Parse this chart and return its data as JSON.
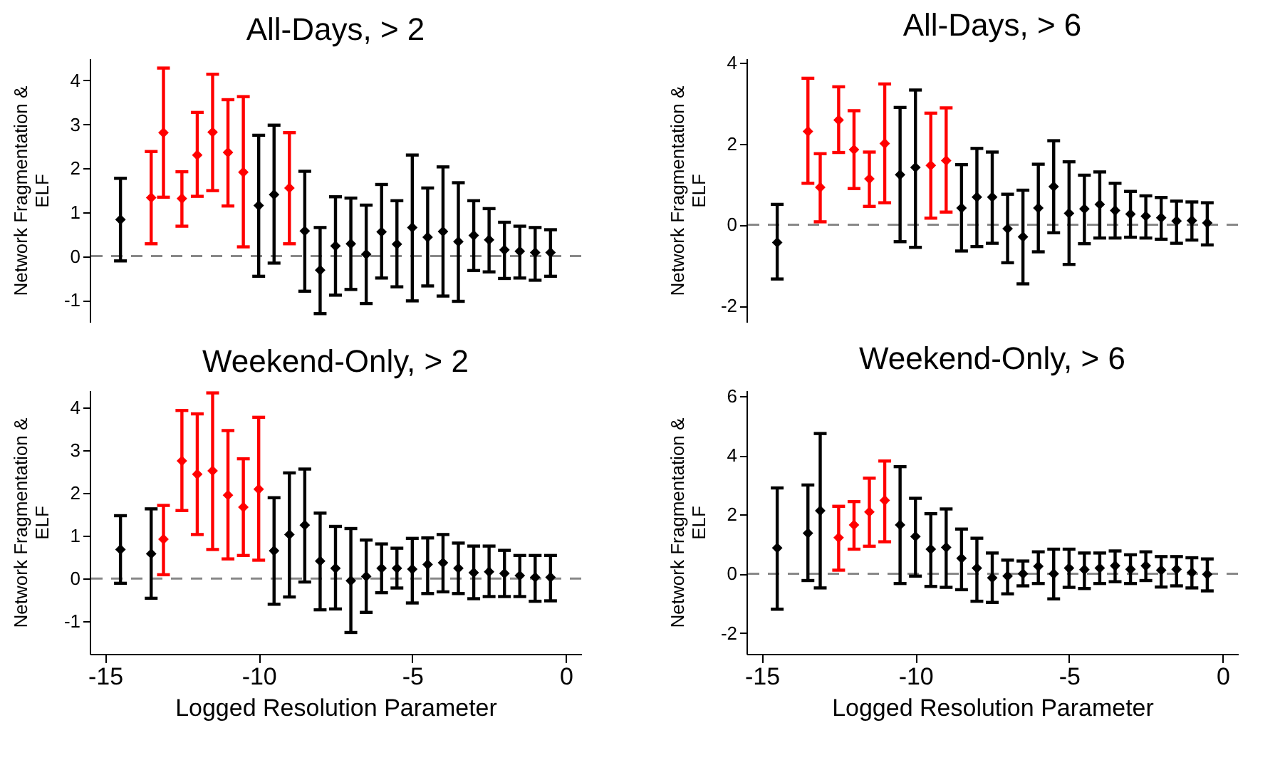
{
  "chart_data": [
    {
      "type": "scatter",
      "title": "All-Days, > 2",
      "ylabel": "Network Fragmentation &\nELF",
      "x": [
        -14.5,
        -13.5,
        -13.1,
        -12.5,
        -12,
        -11.5,
        -11,
        -10.5,
        -10,
        -9.5,
        -9,
        -8.5,
        -8,
        -7.5,
        -7,
        -6.5,
        -6,
        -5.5,
        -5,
        -4.5,
        -4,
        -3.5,
        -3,
        -2.5,
        -2,
        -1.5,
        -1,
        -0.5
      ],
      "values": [
        0.83,
        1.33,
        2.81,
        1.31,
        2.3,
        2.82,
        2.36,
        1.91,
        1.15,
        1.4,
        1.55,
        0.57,
        -0.32,
        0.23,
        0.28,
        0.04,
        0.55,
        0.27,
        0.65,
        0.43,
        0.56,
        0.33,
        0.47,
        0.37,
        0.14,
        0.11,
        0.08,
        0.08
      ],
      "errors": [
        [
          -0.11,
          1.77
        ],
        [
          0.28,
          2.38
        ],
        [
          1.34,
          4.28
        ],
        [
          0.68,
          1.92
        ],
        [
          1.36,
          3.27
        ],
        [
          1.49,
          4.14
        ],
        [
          1.14,
          3.56
        ],
        [
          0.21,
          3.63
        ],
        [
          -0.46,
          2.75
        ],
        [
          -0.16,
          2.98
        ],
        [
          0.28,
          2.81
        ],
        [
          -0.8,
          1.93
        ],
        [
          -1.31,
          0.65
        ],
        [
          -0.89,
          1.35
        ],
        [
          -0.76,
          1.32
        ],
        [
          -1.08,
          1.16
        ],
        [
          -0.5,
          1.63
        ],
        [
          -0.7,
          1.26
        ],
        [
          -1.02,
          2.3
        ],
        [
          -0.68,
          1.55
        ],
        [
          -0.91,
          2.03
        ],
        [
          -1.03,
          1.67
        ],
        [
          -0.33,
          1.26
        ],
        [
          -0.36,
          1.08
        ],
        [
          -0.51,
          0.77
        ],
        [
          -0.5,
          0.68
        ],
        [
          -0.55,
          0.65
        ],
        [
          -0.46,
          0.6
        ]
      ],
      "colors": [
        "#000000",
        "#ff0000",
        "#ff0000",
        "#ff0000",
        "#ff0000",
        "#ff0000",
        "#ff0000",
        "#ff0000",
        "#000000",
        "#000000",
        "#ff0000",
        "#000000",
        "#000000",
        "#000000",
        "#000000",
        "#000000",
        "#000000",
        "#000000",
        "#000000",
        "#000000",
        "#000000",
        "#000000",
        "#000000",
        "#000000",
        "#000000",
        "#000000",
        "#000000",
        "#000000"
      ],
      "xlim": [
        -15.5,
        0.5
      ],
      "ylim": [
        -1.5,
        4.5
      ],
      "yticks": [
        -1,
        0,
        1,
        2,
        3,
        4
      ],
      "tick_labels": "y",
      "marker": "diamond",
      "ref_lines": [
        {
          "axis": "y",
          "value": 0,
          "color": "#888888",
          "line_style": "dashed"
        }
      ]
    },
    {
      "type": "scatter",
      "title": "All-Days, > 6",
      "ylabel": "Network Fragmentation &\nELF",
      "x": [
        -14.5,
        -13.5,
        -13.1,
        -12.5,
        -12,
        -11.5,
        -11,
        -10.5,
        -10,
        -9.5,
        -9,
        -8.5,
        -8,
        -7.5,
        -7,
        -6.5,
        -6,
        -5.5,
        -5,
        -4.5,
        -4,
        -3.5,
        -3,
        -2.5,
        -2,
        -1.5,
        -1,
        -0.5
      ],
      "values": [
        -0.44,
        2.3,
        0.92,
        2.58,
        1.85,
        1.13,
        2.0,
        1.23,
        1.41,
        1.46,
        1.58,
        0.41,
        0.68,
        0.68,
        -0.1,
        -0.3,
        0.41,
        0.94,
        0.28,
        0.39,
        0.5,
        0.35,
        0.26,
        0.21,
        0.17,
        0.09,
        0.1,
        0.04
      ],
      "errors": [
        [
          -1.34,
          0.5
        ],
        [
          1.02,
          3.61
        ],
        [
          0.07,
          1.75
        ],
        [
          1.78,
          3.4
        ],
        [
          0.89,
          2.81
        ],
        [
          0.45,
          1.79
        ],
        [
          0.54,
          3.47
        ],
        [
          -0.42,
          2.89
        ],
        [
          -0.56,
          3.32
        ],
        [
          0.16,
          2.75
        ],
        [
          0.31,
          2.88
        ],
        [
          -0.65,
          1.48
        ],
        [
          -0.54,
          1.88
        ],
        [
          -0.46,
          1.79
        ],
        [
          -0.94,
          0.75
        ],
        [
          -1.46,
          0.85
        ],
        [
          -0.67,
          1.49
        ],
        [
          -0.2,
          2.07
        ],
        [
          -0.98,
          1.55
        ],
        [
          -0.47,
          1.22
        ],
        [
          -0.33,
          1.3
        ],
        [
          -0.33,
          1.02
        ],
        [
          -0.31,
          0.82
        ],
        [
          -0.33,
          0.71
        ],
        [
          -0.36,
          0.67
        ],
        [
          -0.46,
          0.58
        ],
        [
          -0.38,
          0.56
        ],
        [
          -0.5,
          0.54
        ]
      ],
      "colors": [
        "#000000",
        "#ff0000",
        "#ff0000",
        "#ff0000",
        "#ff0000",
        "#ff0000",
        "#ff0000",
        "#000000",
        "#000000",
        "#ff0000",
        "#ff0000",
        "#000000",
        "#000000",
        "#000000",
        "#000000",
        "#000000",
        "#000000",
        "#000000",
        "#000000",
        "#000000",
        "#000000",
        "#000000",
        "#000000",
        "#000000",
        "#000000",
        "#000000",
        "#000000",
        "#000000"
      ],
      "xlim": [
        -15.5,
        0.5
      ],
      "ylim": [
        -2.4,
        4.1
      ],
      "yticks": [
        -2,
        0,
        2,
        4
      ],
      "tick_labels": "y",
      "marker": "diamond",
      "ref_lines": [
        {
          "axis": "y",
          "value": 0,
          "color": "#888888",
          "line_style": "dashed"
        }
      ]
    },
    {
      "type": "scatter",
      "title": "Weekend-Only, > 2",
      "xlabel": "Logged Resolution Parameter",
      "ylabel": "Network Fragmentation &\nELF",
      "x": [
        -14.5,
        -13.5,
        -13.1,
        -12.5,
        -12,
        -11.5,
        -11,
        -10.5,
        -10,
        -9.5,
        -9,
        -8.5,
        -8,
        -7.5,
        -7,
        -6.5,
        -6,
        -5.5,
        -5,
        -4.5,
        -4,
        -3.5,
        -3,
        -2.5,
        -2,
        -1.5,
        -1,
        -0.5
      ],
      "values": [
        0.68,
        0.58,
        0.92,
        2.75,
        2.44,
        2.52,
        1.95,
        1.67,
        2.09,
        0.65,
        1.03,
        1.25,
        0.41,
        0.24,
        -0.05,
        0.05,
        0.24,
        0.24,
        0.22,
        0.33,
        0.37,
        0.24,
        0.14,
        0.16,
        0.12,
        0.07,
        0.03,
        0.03
      ],
      "errors": [
        [
          -0.11,
          1.47
        ],
        [
          -0.46,
          1.63
        ],
        [
          0.09,
          1.71
        ],
        [
          1.59,
          3.93
        ],
        [
          1.03,
          3.85
        ],
        [
          0.68,
          4.34
        ],
        [
          0.46,
          3.46
        ],
        [
          0.54,
          2.8
        ],
        [
          0.43,
          3.77
        ],
        [
          -0.6,
          1.89
        ],
        [
          -0.43,
          2.47
        ],
        [
          -0.08,
          2.56
        ],
        [
          -0.73,
          1.53
        ],
        [
          -0.71,
          1.22
        ],
        [
          -1.26,
          1.17
        ],
        [
          -0.79,
          0.9
        ],
        [
          -0.33,
          0.81
        ],
        [
          -0.22,
          0.71
        ],
        [
          -0.57,
          0.94
        ],
        [
          -0.35,
          0.95
        ],
        [
          -0.31,
          1.03
        ],
        [
          -0.35,
          0.83
        ],
        [
          -0.47,
          0.76
        ],
        [
          -0.42,
          0.76
        ],
        [
          -0.42,
          0.66
        ],
        [
          -0.42,
          0.54
        ],
        [
          -0.53,
          0.54
        ],
        [
          -0.52,
          0.54
        ]
      ],
      "colors": [
        "#000000",
        "#000000",
        "#ff0000",
        "#ff0000",
        "#ff0000",
        "#ff0000",
        "#ff0000",
        "#ff0000",
        "#ff0000",
        "#000000",
        "#000000",
        "#000000",
        "#000000",
        "#000000",
        "#000000",
        "#000000",
        "#000000",
        "#000000",
        "#000000",
        "#000000",
        "#000000",
        "#000000",
        "#000000",
        "#000000",
        "#000000",
        "#000000",
        "#000000",
        "#000000"
      ],
      "xlim": [
        -15.5,
        0.5
      ],
      "xticks": [
        -15,
        -10,
        -5,
        0
      ],
      "ylim": [
        -1.76,
        4.4
      ],
      "yticks": [
        -1,
        0,
        1,
        2,
        3,
        4
      ],
      "marker": "diamond",
      "ref_lines": [
        {
          "axis": "y",
          "value": 0,
          "color": "#888888",
          "line_style": "dashed"
        }
      ]
    },
    {
      "type": "scatter",
      "title": "Weekend-Only, > 6",
      "xlabel": "Logged Resolution Parameter",
      "ylabel": "Network Fragmentation &\nELF",
      "x": [
        -14.5,
        -13.5,
        -13.1,
        -12.5,
        -12,
        -11.5,
        -11,
        -10.5,
        -10,
        -9.5,
        -9,
        -8.5,
        -8,
        -7.5,
        -7,
        -6.5,
        -6,
        -5.5,
        -5,
        -4.5,
        -4,
        -3.5,
        -3,
        -2.5,
        -2,
        -1.5,
        -1,
        -0.5
      ],
      "values": [
        0.87,
        1.37,
        2.13,
        1.22,
        1.65,
        2.09,
        2.48,
        1.65,
        1.26,
        0.83,
        0.89,
        0.52,
        0.19,
        -0.14,
        -0.08,
        0.0,
        0.25,
        0.0,
        0.19,
        0.14,
        0.19,
        0.27,
        0.15,
        0.27,
        0.12,
        0.15,
        0.04,
        -0.02
      ],
      "errors": [
        [
          -1.2,
          2.9
        ],
        [
          -0.23,
          3.0
        ],
        [
          -0.48,
          4.74
        ],
        [
          0.12,
          2.28
        ],
        [
          0.83,
          2.44
        ],
        [
          0.93,
          3.23
        ],
        [
          1.08,
          3.81
        ],
        [
          -0.33,
          3.62
        ],
        [
          -0.08,
          2.55
        ],
        [
          -0.43,
          2.03
        ],
        [
          -0.46,
          2.19
        ],
        [
          -0.54,
          1.51
        ],
        [
          -0.93,
          1.2
        ],
        [
          -0.97,
          0.7
        ],
        [
          -0.68,
          0.46
        ],
        [
          -0.41,
          0.43
        ],
        [
          -0.33,
          0.74
        ],
        [
          -0.85,
          0.83
        ],
        [
          -0.46,
          0.83
        ],
        [
          -0.5,
          0.7
        ],
        [
          -0.33,
          0.7
        ],
        [
          -0.27,
          0.77
        ],
        [
          -0.33,
          0.64
        ],
        [
          -0.23,
          0.74
        ],
        [
          -0.45,
          0.58
        ],
        [
          -0.41,
          0.58
        ],
        [
          -0.48,
          0.54
        ],
        [
          -0.58,
          0.5
        ]
      ],
      "colors": [
        "#000000",
        "#000000",
        "#000000",
        "#ff0000",
        "#ff0000",
        "#ff0000",
        "#ff0000",
        "#000000",
        "#000000",
        "#000000",
        "#000000",
        "#000000",
        "#000000",
        "#000000",
        "#000000",
        "#000000",
        "#000000",
        "#000000",
        "#000000",
        "#000000",
        "#000000",
        "#000000",
        "#000000",
        "#000000",
        "#000000",
        "#000000",
        "#000000",
        "#000000"
      ],
      "xlim": [
        -15.5,
        0.5
      ],
      "xticks": [
        -15,
        -10,
        -5,
        0
      ],
      "ylim": [
        -2.71,
        6.2
      ],
      "yticks": [
        -2,
        0,
        2,
        4,
        6
      ],
      "marker": "diamond",
      "ref_lines": [
        {
          "axis": "y",
          "value": 0,
          "color": "#888888",
          "line_style": "dashed"
        }
      ]
    }
  ]
}
